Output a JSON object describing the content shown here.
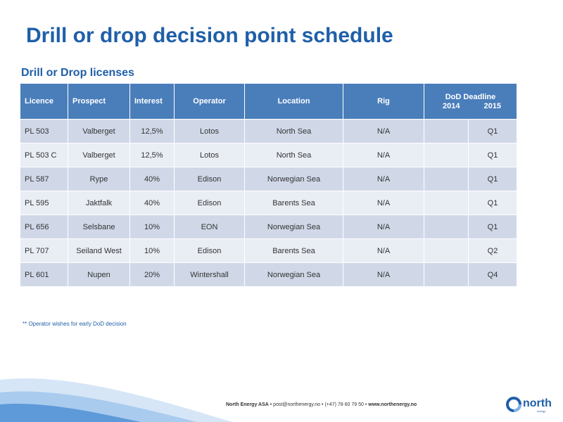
{
  "title": "Drill or drop decision point schedule",
  "subtitle": "Drill or Drop licenses",
  "table": {
    "headers": {
      "licence": "Licence",
      "prospect": "Prospect",
      "interest": "Interest",
      "operator": "Operator",
      "location": "Location",
      "rig": "Rig",
      "dod_deadline": "DoD Deadline",
      "year_2014": "2014",
      "year_2015": "2015"
    },
    "rows": [
      {
        "licence": "PL 503",
        "prospect": "Valberget",
        "interest": "12,5%",
        "operator": "Lotos",
        "location": "North Sea",
        "rig": "N/A",
        "y2014": "",
        "y2015": "Q1"
      },
      {
        "licence": "PL 503 C",
        "prospect": "Valberget",
        "interest": "12,5%",
        "operator": "Lotos",
        "location": "North Sea",
        "rig": "N/A",
        "y2014": "",
        "y2015": "Q1"
      },
      {
        "licence": "PL 587",
        "prospect": "Rype",
        "interest": "40%",
        "operator": "Edison",
        "location": "Norwegian Sea",
        "rig": "N/A",
        "y2014": "",
        "y2015": "Q1"
      },
      {
        "licence": "PL 595",
        "prospect": "Jaktfalk",
        "interest": "40%",
        "operator": "Edison",
        "location": "Barents Sea",
        "rig": "N/A",
        "y2014": "",
        "y2015": "Q1"
      },
      {
        "licence": "PL 656",
        "prospect": "Selsbane",
        "interest": "10%",
        "operator": "EON",
        "location": "Norwegian Sea",
        "rig": "N/A",
        "y2014": "",
        "y2015": "Q1"
      },
      {
        "licence": "PL 707",
        "prospect": "Seiland West",
        "interest": "10%",
        "operator": "Edison",
        "location": "Barents Sea",
        "rig": "N/A",
        "y2014": "",
        "y2015": "Q2"
      },
      {
        "licence": "PL 601",
        "prospect": "Nupen",
        "interest": "20%",
        "operator": "Wintershall",
        "location": "Norwegian Sea",
        "rig": "N/A",
        "y2014": "",
        "y2015": "Q4"
      }
    ]
  },
  "note": "** Operator wishes for early DoD decision",
  "footer": {
    "company": "North Energy ASA",
    "email": "post@northenergy.no",
    "phone": "(+47) 78 60 79 50",
    "website": "www.northenergy.no",
    "separator": "•"
  },
  "logo": {
    "word": "north",
    "sub": "energy"
  },
  "colors": {
    "brand_blue": "#1f5fa8",
    "header_bg": "#4a7ebb",
    "row_odd": "#d0d8e8",
    "row_even": "#e9edf4"
  }
}
